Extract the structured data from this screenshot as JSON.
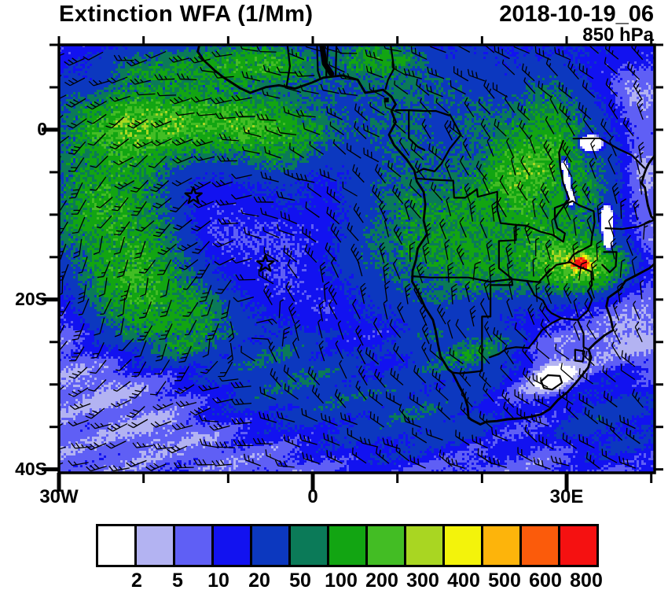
{
  "figure": {
    "title": "Extinction WFA (1/Mm)",
    "datetime": "2018-10-19_06",
    "level": "850 hPa"
  },
  "axes": {
    "lon": {
      "min": -30,
      "max": 40.4,
      "minor_step": 10,
      "label_ticks": [
        {
          "value": -30,
          "label": "30W"
        },
        {
          "value": 0,
          "label": "0"
        },
        {
          "value": 30,
          "label": "30E"
        }
      ]
    },
    "lat": {
      "min": -40.4,
      "max": 10,
      "minor_step": 5,
      "label_ticks": [
        {
          "value": 0,
          "label": "0"
        },
        {
          "value": -20,
          "label": "20S"
        },
        {
          "value": -40,
          "label": "40S"
        }
      ]
    }
  },
  "colorbar": {
    "boundary_labels": [
      "2",
      "5",
      "10",
      "20",
      "50",
      "100",
      "200",
      "300",
      "400",
      "500",
      "600",
      "800"
    ],
    "colors": [
      "#ffffff",
      "#b3b3f2",
      "#5f5ff5",
      "#1212f0",
      "#0c38bf",
      "#0b7a58",
      "#12a512",
      "#43bd24",
      "#a9d622",
      "#f3f30b",
      "#fdb40b",
      "#fb5b0b",
      "#f51111"
    ],
    "border_color": "#000000"
  },
  "markers": {
    "stars": [
      {
        "lon": -14.1,
        "lat": -7.8
      },
      {
        "lon": -5.6,
        "lat": -15.8
      }
    ]
  },
  "map": {
    "ink_color": "#000000",
    "background": "#ffffff"
  }
}
